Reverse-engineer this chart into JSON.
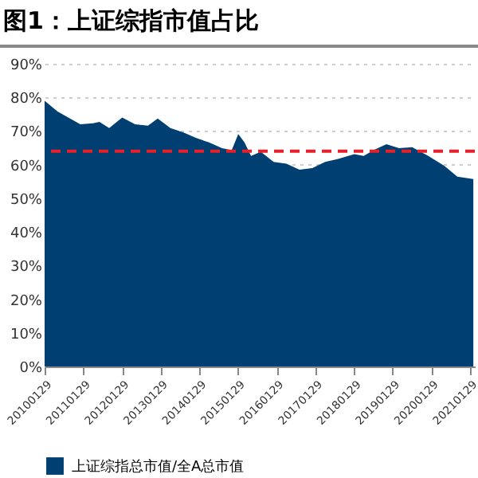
{
  "chart_data": {
    "type": "area",
    "title": "图1：上证综指市值占比",
    "x": [
      "2010-01-29",
      "2010-06",
      "2011-01",
      "2011-05",
      "2011-07",
      "2011-10",
      "2012-02",
      "2012-06",
      "2012-10",
      "2013-01",
      "2013-05",
      "2013-09",
      "2014-01",
      "2014-05",
      "2014-09",
      "2014-12",
      "2015-02",
      "2015-04",
      "2015-06",
      "2015-09",
      "2016-01",
      "2016-05",
      "2016-09",
      "2017-01",
      "2017-05",
      "2017-09",
      "2018-02",
      "2018-05",
      "2018-08",
      "2018-12",
      "2019-04",
      "2019-08",
      "2020-01",
      "2020-06",
      "2020-10",
      "2021-03"
    ],
    "series": [
      {
        "name": "上证综指总市值/全A总市值",
        "color": "#003f72",
        "values": [
          79.0,
          75.8,
          72.0,
          72.3,
          72.7,
          70.9,
          74.0,
          72.0,
          71.6,
          73.7,
          70.9,
          69.6,
          67.9,
          66.6,
          64.9,
          64.3,
          69.1,
          66.6,
          62.6,
          63.8,
          60.8,
          60.3,
          58.5,
          59.0,
          60.8,
          61.7,
          63.1,
          62.6,
          64.3,
          66.1,
          64.9,
          65.2,
          62.6,
          59.6,
          56.4,
          55.7
        ]
      }
    ],
    "ylim": [
      0,
      90
    ],
    "yticks": [
      {
        "value": 0,
        "label": "0%"
      },
      {
        "value": 10,
        "label": "10%"
      },
      {
        "value": 20,
        "label": "20%"
      },
      {
        "value": 30,
        "label": "30%"
      },
      {
        "value": 40,
        "label": "40%"
      },
      {
        "value": 50,
        "label": "50%"
      },
      {
        "value": 60,
        "label": "60%"
      },
      {
        "value": 70,
        "label": "70%"
      },
      {
        "value": 80,
        "label": "80%"
      },
      {
        "value": 90,
        "label": "90%"
      }
    ],
    "xlim": [
      "2010-01-29",
      "2021-03-15"
    ],
    "xticks": [
      {
        "value": "2010-01-29",
        "label": "20100129"
      },
      {
        "value": "2011-01-29",
        "label": "20110129"
      },
      {
        "value": "2012-01-29",
        "label": "20120129"
      },
      {
        "value": "2013-01-29",
        "label": "20130129"
      },
      {
        "value": "2014-01-29",
        "label": "20140129"
      },
      {
        "value": "2015-01-29",
        "label": "20150129"
      },
      {
        "value": "2016-01-29",
        "label": "20160129"
      },
      {
        "value": "2017-01-29",
        "label": "20170129"
      },
      {
        "value": "2018-01-29",
        "label": "20180129"
      },
      {
        "value": "2019-01-29",
        "label": "20190129"
      },
      {
        "value": "2020-01-29",
        "label": "20200129"
      },
      {
        "value": "2021-01-29",
        "label": "20210129"
      }
    ],
    "ref_lines": [
      {
        "axis": "y",
        "value": 64,
        "color": "#e8202a",
        "line_style": "dashed"
      }
    ],
    "grid": "y",
    "legend": "bottom"
  }
}
